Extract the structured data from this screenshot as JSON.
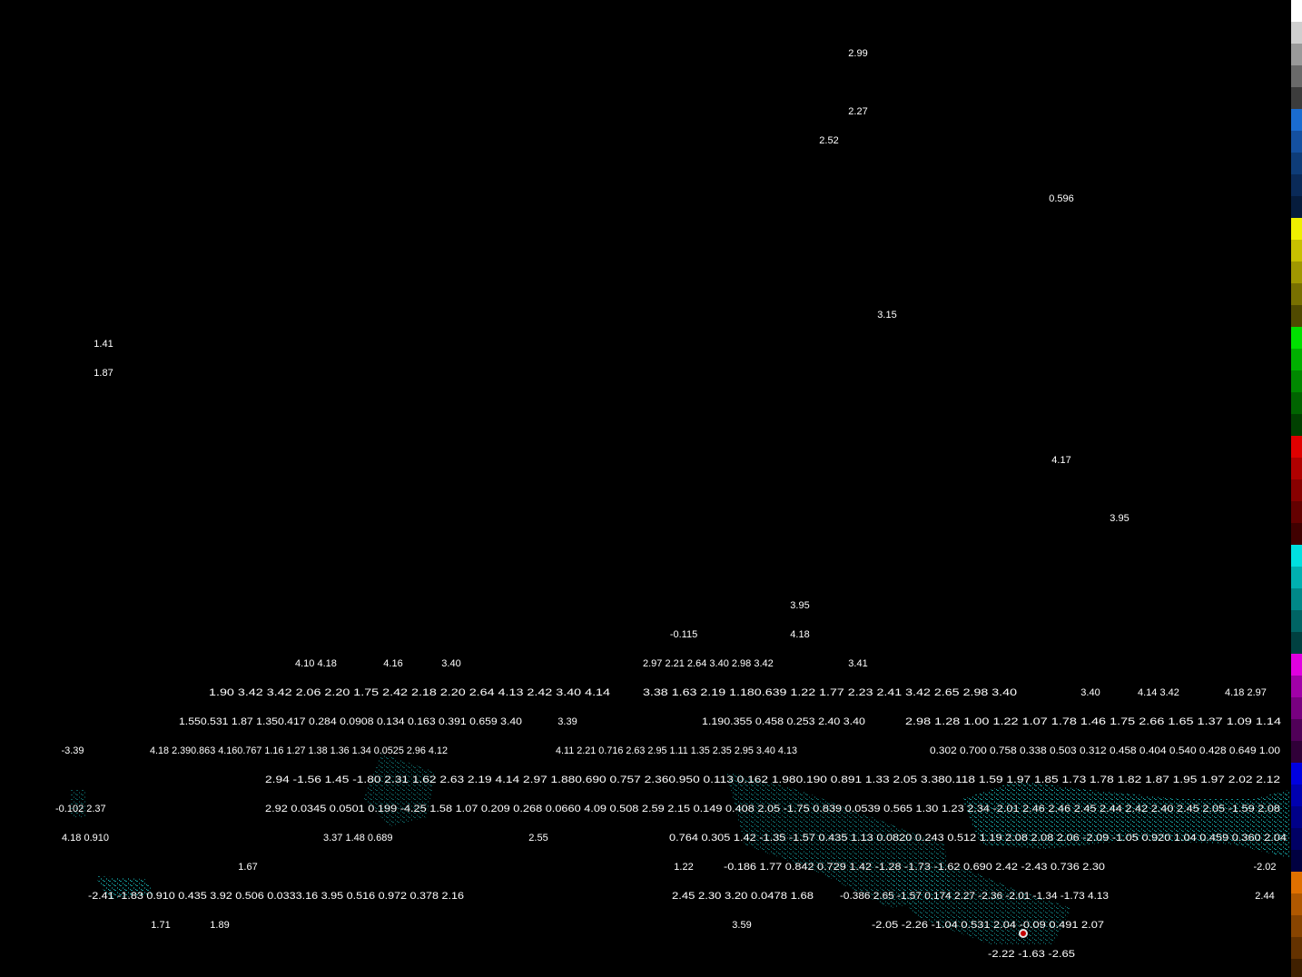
{
  "labels": [
    "2.99",
    "2.27",
    "2.52",
    "0.596",
    "3.15",
    "1.41",
    "1.87",
    "4.17",
    "3.95",
    "3.95",
    "-0.115",
    "4.18",
    "4.10 4.18",
    "4.16",
    "3.40",
    "2.97 2.21 2.64 3.40 2.98 3.42",
    "3.41",
    "1.90 3.42 3.42 2.06 2.20 1.75 2.42 2.18 2.20 2.64 4.13 2.42 3.40 4.14",
    "3.38 1.63 2.19 1.180.639 1.22 1.77 2.23 2.41 3.42 2.65 2.98 3.40",
    "3.40",
    "4.14 3.42",
    "4.18 2.97",
    "1.550.531 1.87 1.350.417 0.284 0.0908 0.134 0.163 0.391 0.659 3.40",
    "3.39",
    "1.190.355 0.458 0.253 2.40 3.40",
    "2.98 1.28 1.00 1.22 1.07 1.78 1.46 1.75 2.66 1.65 1.37 1.09 1.14",
    "-3.39",
    "4.18 2.390.863 4.160.767 1.16 1.27 1.38 1.36 1.34 0.0525 2.96 4.12",
    "4.11 2.21 0.716 2.63 2.95 1.11 1.35 2.35 2.95 3.40 4.13",
    "0.302 0.700 0.758 0.338 0.503 0.312 0.458 0.404 0.540 0.428 0.649 1.00",
    "2.94 -1.56 1.45 -1.80 2.31 1.62 2.63 2.19 4.14 2.97 1.880.690 0.757 2.360.950 0.113 0.162 1.980.190 0.891 1.33 2.05 3.380.118 1.59 1.97 1.85 1.73 1.78 1.82 1.87 1.95 1.97 2.02 2.12",
    "-0.102 2.37",
    "2.92 0.0345 0.0501 0.199 -4.25 1.58 1.07 0.209 0.268 0.0660 4.09 0.508 2.59 2.15 0.149 0.408 2.05 -1.75 0.839 0.0539 0.565 1.30 1.23 2.34 -2.01 2.46 2.46 2.45 2.44 2.42 2.40 2.45 2.05 -1.59 2.08",
    "4.18 0.910",
    "3.37 1.48 0.689",
    "2.55",
    "0.764 0.305 1.42 -1.35 -1.57 0.435 1.13 0.0820 0.243 0.512 1.19 2.08 2.08 2.06 -2.09 -1.05 0.920 1.04 0.459 0.360 2.04",
    "1.67",
    "1.22",
    "-0.186 1.77 0.842 0.729 1.42 -1.28 -1.73 -1.62 0.690 2.42 -2.43 0.736 2.30",
    "-2.02",
    "-2.41 -1.83 0.910 0.435 3.92 0.506 0.0333.16 3.95 0.516 0.972 0.378 2.16",
    "2.45 2.30 3.20 0.0478 1.68",
    "-0.386 2.65 -1.57 0.174 2.27 -2.36 -2.01 -1.34 -1.73 4.13",
    "2.44",
    "1.71",
    "1.89",
    "3.59",
    "-2.05 -2.26 -1.04 0.531 2.04 -0.09 0.491 2.07",
    "-2.22 -1.63 -2.65"
  ]
}
